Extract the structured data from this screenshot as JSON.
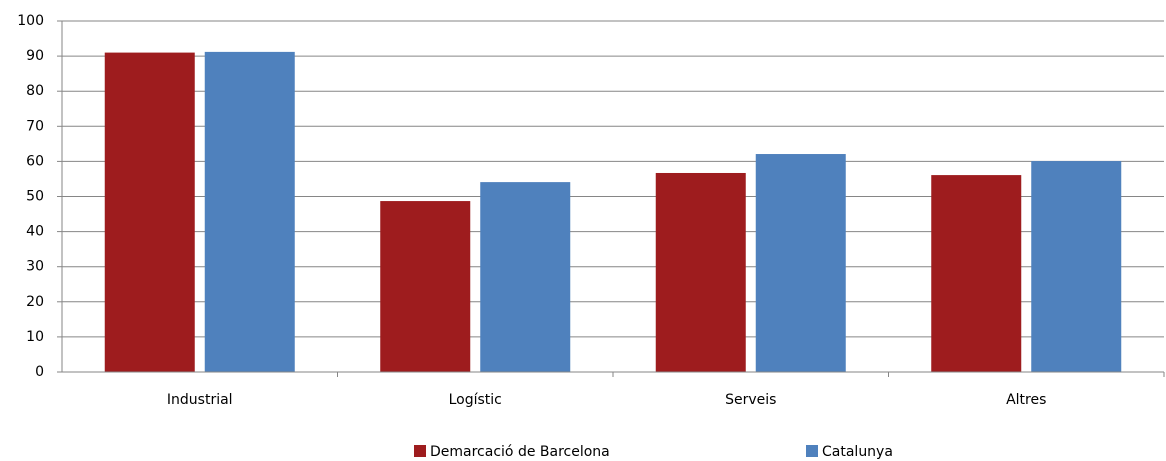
{
  "chart_data": {
    "type": "bar",
    "categories": [
      "Industrial",
      "Logístic",
      "Serveis",
      "Altres"
    ],
    "series": [
      {
        "name": "Demarcació de Barcelona",
        "color": "#9e1c1e",
        "values": [
          91,
          48.7,
          56.7,
          56.1
        ]
      },
      {
        "name": "Catalunya",
        "color": "#4f81bd",
        "values": [
          91.2,
          54.1,
          62.1,
          60.1
        ]
      }
    ],
    "ylim": [
      0,
      100
    ],
    "yticks": [
      0,
      10,
      20,
      30,
      40,
      50,
      60,
      70,
      80,
      90,
      100
    ],
    "grid": true,
    "legend": "bottom"
  }
}
